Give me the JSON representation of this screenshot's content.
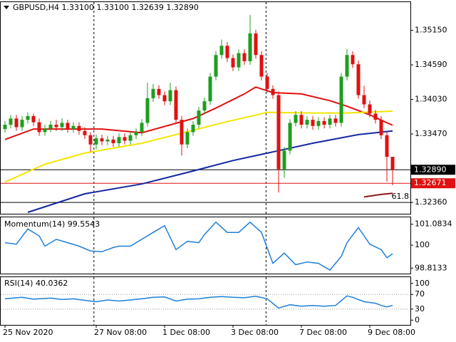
{
  "chart_data": [
    {
      "type": "candlestick",
      "title": "GBPUSD,H4  1.33100 1.33100 1.32639 1.32890",
      "up_color": "#1e9e1e",
      "down_color": "#e01010",
      "x": [
        0,
        1,
        2,
        3,
        4,
        5,
        6,
        7,
        8,
        9,
        10,
        11,
        12,
        13,
        14,
        15,
        16,
        17,
        18,
        19,
        20,
        21,
        22,
        23,
        24,
        25,
        26,
        27,
        28,
        29,
        30,
        31,
        32,
        33,
        34,
        35,
        36,
        37,
        38,
        39,
        40,
        41,
        42,
        43,
        44,
        45,
        46,
        47,
        48,
        49,
        50,
        51,
        52,
        53,
        54,
        55,
        56,
        57,
        58,
        59,
        60,
        61,
        62,
        63,
        64,
        65,
        66,
        67,
        68
      ],
      "open": [
        1.3355,
        1.3362,
        1.3372,
        1.3358,
        1.337,
        1.3376,
        1.3366,
        1.335,
        1.3356,
        1.3362,
        1.3358,
        1.3365,
        1.3355,
        1.336,
        1.3352,
        1.3345,
        1.333,
        1.334,
        1.3335,
        1.3338,
        1.3332,
        1.3342,
        1.3336,
        1.3345,
        1.335,
        1.3365,
        1.3405,
        1.342,
        1.341,
        1.34,
        1.3418,
        1.337,
        1.333,
        1.335,
        1.3362,
        1.3385,
        1.34,
        1.344,
        1.3475,
        1.349,
        1.347,
        1.3455,
        1.3478,
        1.3465,
        1.351,
        1.3475,
        1.344,
        1.342,
        1.341,
        1.329,
        1.332,
        1.3365,
        1.3378,
        1.3362,
        1.337,
        1.336,
        1.3368,
        1.3362,
        1.3372,
        1.3365,
        1.344,
        1.3475,
        1.346,
        1.341,
        1.3395,
        1.338,
        1.337,
        1.3345,
        1.331
      ],
      "high": [
        1.3368,
        1.3378,
        1.3378,
        1.3376,
        1.3382,
        1.338,
        1.3372,
        1.3362,
        1.3368,
        1.337,
        1.3372,
        1.337,
        1.3366,
        1.3366,
        1.3358,
        1.335,
        1.3346,
        1.3346,
        1.3344,
        1.3344,
        1.3348,
        1.3348,
        1.3351,
        1.3356,
        1.3371,
        1.343,
        1.3428,
        1.3426,
        1.3416,
        1.343,
        1.3424,
        1.3376,
        1.3356,
        1.3368,
        1.3391,
        1.3406,
        1.3446,
        1.3481,
        1.35,
        1.3496,
        1.3476,
        1.3484,
        1.3484,
        1.354,
        1.3516,
        1.3481,
        1.3446,
        1.3426,
        1.3416,
        1.3326,
        1.3371,
        1.3384,
        1.3384,
        1.3376,
        1.3376,
        1.3374,
        1.3374,
        1.3378,
        1.3378,
        1.3446,
        1.3485,
        1.3481,
        1.3466,
        1.3425,
        1.3401,
        1.3386,
        1.3376,
        1.3351,
        1.331
      ],
      "low": [
        1.3349,
        1.3356,
        1.3352,
        1.3352,
        1.3364,
        1.336,
        1.3344,
        1.3344,
        1.335,
        1.3352,
        1.3352,
        1.3349,
        1.3349,
        1.3346,
        1.3339,
        1.3318,
        1.3322,
        1.3329,
        1.3329,
        1.3326,
        1.3326,
        1.333,
        1.333,
        1.3339,
        1.3344,
        1.3359,
        1.3399,
        1.3404,
        1.3394,
        1.3394,
        1.3364,
        1.3312,
        1.3324,
        1.3344,
        1.3356,
        1.3379,
        1.3394,
        1.3434,
        1.3469,
        1.3464,
        1.3449,
        1.3449,
        1.3459,
        1.3459,
        1.3469,
        1.3434,
        1.3414,
        1.3404,
        1.3252,
        1.3276,
        1.3314,
        1.3359,
        1.3356,
        1.3356,
        1.3354,
        1.3354,
        1.3356,
        1.3356,
        1.3359,
        1.3359,
        1.3434,
        1.3454,
        1.3404,
        1.3389,
        1.3374,
        1.3364,
        1.3339,
        1.327,
        1.32639
      ],
      "close": [
        1.3362,
        1.3372,
        1.3358,
        1.337,
        1.3376,
        1.3366,
        1.335,
        1.3356,
        1.3362,
        1.3358,
        1.3365,
        1.3355,
        1.336,
        1.3352,
        1.3345,
        1.333,
        1.334,
        1.3335,
        1.3338,
        1.3332,
        1.3342,
        1.3336,
        1.3345,
        1.335,
        1.3365,
        1.3405,
        1.342,
        1.341,
        1.34,
        1.3418,
        1.337,
        1.333,
        1.335,
        1.3362,
        1.3385,
        1.34,
        1.344,
        1.3475,
        1.349,
        1.347,
        1.3455,
        1.3478,
        1.3465,
        1.351,
        1.3475,
        1.344,
        1.342,
        1.341,
        1.329,
        1.332,
        1.3365,
        1.3378,
        1.3362,
        1.337,
        1.336,
        1.3368,
        1.3362,
        1.3372,
        1.3365,
        1.344,
        1.3475,
        1.346,
        1.341,
        1.3395,
        1.338,
        1.337,
        1.3345,
        1.331,
        1.3289
      ],
      "series": [
        {
          "color": "#e01010",
          "x": [
            0,
            5,
            17,
            24,
            33,
            37,
            42,
            44,
            47,
            52,
            57,
            60,
            64,
            68
          ],
          "values": [
            1.3338,
            1.3355,
            1.3355,
            1.3349,
            1.3372,
            1.3389,
            1.3412,
            1.3423,
            1.3414,
            1.3412,
            1.3401,
            1.3392,
            1.3378,
            1.3361
          ]
        },
        {
          "color": "#f2e600",
          "x": [
            0,
            7,
            14,
            24,
            33,
            39,
            46,
            54,
            60,
            68
          ],
          "values": [
            1.3269,
            1.3298,
            1.3316,
            1.3332,
            1.3353,
            1.3367,
            1.3382,
            1.3381,
            1.3381,
            1.3384
          ]
        },
        {
          "color": "#1428a0",
          "x": [
            4,
            14,
            24,
            33,
            40,
            47,
            54,
            62,
            68
          ],
          "values": [
            1.322,
            1.325,
            1.3266,
            1.3287,
            1.3304,
            1.3318,
            1.3332,
            1.3346,
            1.3352
          ]
        },
        {
          "color": "#8b1a1a",
          "x": [
            63,
            66,
            68
          ],
          "values": [
            1.3245,
            1.3249,
            1.3251
          ]
        }
      ],
      "hlines": [
        {
          "value": 1.3289,
          "label": "1.32890",
          "color": "#000000"
        },
        {
          "value": 1.32671,
          "label": "1.32671",
          "color": "#e01010"
        },
        {
          "value": 1.3236,
          "color": "#000000"
        }
      ],
      "annotation": "61.8",
      "separators": [
        15.6,
        45.8
      ],
      "xlim": [
        -0.75,
        71.125
      ],
      "ylim": [
        1.32177,
        1.35607
      ],
      "yticks": [
        {
          "value": 1.3515,
          "label": "1.35150"
        },
        {
          "value": 1.3459,
          "label": "1.34590"
        },
        {
          "value": 1.3403,
          "label": "1.34030"
        },
        {
          "value": 1.3347,
          "label": "1.33470"
        },
        {
          "value": 1.3236,
          "label": "1.32360"
        }
      ],
      "xticks": [
        {
          "value": 0,
          "label": "25 Nov 2020"
        },
        {
          "value": 16,
          "label": "27 Nov 08:00"
        },
        {
          "value": 28,
          "label": "1 Dec 08:00"
        },
        {
          "value": 40,
          "label": "3 Dec 08:00"
        },
        {
          "value": 52,
          "label": "7 Dec 08:00"
        },
        {
          "value": 64,
          "label": "9 Dec 08:00"
        }
      ]
    },
    {
      "type": "line",
      "title": "Momentum(14) 99.5543",
      "series": [
        {
          "color": "#1e7fd8",
          "x": [
            0,
            2,
            4,
            6,
            7,
            9,
            11,
            13,
            15,
            17,
            19,
            20,
            22,
            24,
            26,
            28,
            30,
            32,
            34,
            35,
            37,
            39,
            41,
            43,
            45,
            47,
            49,
            51,
            53,
            55,
            57,
            59,
            60,
            62,
            64,
            66,
            67,
            68
          ],
          "values": [
            100.13,
            100.05,
            100.84,
            100.48,
            99.95,
            100.3,
            100.13,
            99.95,
            99.7,
            99.66,
            99.88,
            99.95,
            99.95,
            100.3,
            100.66,
            101.01,
            99.77,
            100.2,
            100.13,
            100.55,
            101.19,
            100.66,
            100.66,
            101.19,
            100.66,
            99.06,
            99.59,
            98.99,
            99.13,
            99.06,
            98.71,
            99.42,
            100.13,
            100.91,
            100.05,
            99.77,
            99.35,
            99.55
          ]
        }
      ],
      "xlim": [
        -0.75,
        71.125
      ],
      "ylim": [
        98.53,
        101.44
      ],
      "yticks": [
        101.0834,
        100,
        98.8133
      ]
    },
    {
      "type": "line",
      "title": "RSI(14) 40.0362",
      "series": [
        {
          "color": "#1e7fd8",
          "x": [
            0,
            3,
            5,
            8,
            10,
            12,
            14,
            16,
            18,
            20,
            22,
            24,
            26,
            28,
            30,
            32,
            34,
            36,
            38,
            40,
            42,
            44,
            46,
            48,
            50,
            52,
            54,
            56,
            58,
            60,
            61,
            63,
            65,
            66,
            67,
            68
          ],
          "values": [
            58,
            62,
            57,
            60,
            56,
            58,
            54,
            50,
            55,
            52,
            55,
            58,
            62,
            63,
            52,
            57,
            58,
            62,
            64,
            62,
            61,
            65,
            58,
            33,
            42,
            38,
            40,
            38,
            40,
            66,
            62,
            50,
            46,
            40,
            36,
            40.0362
          ]
        }
      ],
      "levels": [
        70,
        30
      ],
      "xlim": [
        -0.75,
        71.125
      ],
      "ylim": [
        -13,
        117
      ],
      "yticks": [
        100,
        70,
        30,
        0
      ]
    }
  ]
}
